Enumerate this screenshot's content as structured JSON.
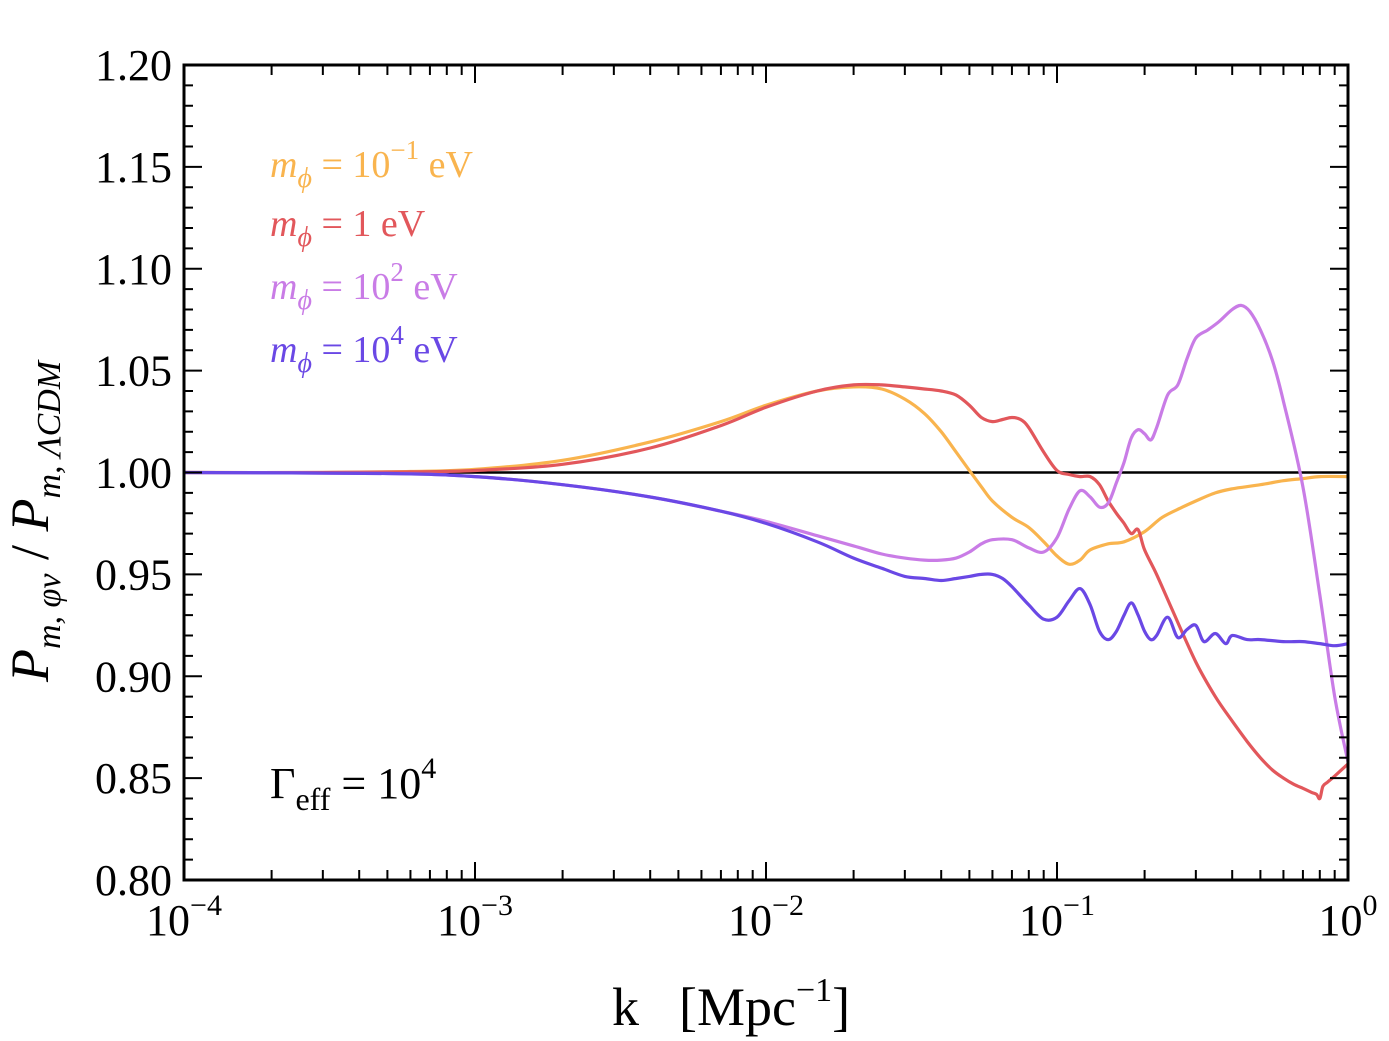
{
  "chart_data": {
    "type": "line",
    "title": "",
    "xscale": "log",
    "xlim": [
      0.0001,
      1
    ],
    "ylim": [
      0.8,
      1.2
    ],
    "xlabel": {
      "main": "k",
      "unit_open": "[Mpc",
      "unit_exp": "−1",
      "unit_close": "]"
    },
    "ylabel": {
      "p1": "P",
      "s1": "m, φν",
      "sep": " / ",
      "p2": "P",
      "s2": "m, ΛCDM"
    },
    "x_ticks": [
      {
        "value": 0.0001,
        "base": "10",
        "exp": "−4"
      },
      {
        "value": 0.001,
        "base": "10",
        "exp": "−3"
      },
      {
        "value": 0.01,
        "base": "10",
        "exp": "−2"
      },
      {
        "value": 0.1,
        "base": "10",
        "exp": "−1"
      },
      {
        "value": 1,
        "base": "10",
        "exp": "0"
      }
    ],
    "y_ticks": [
      {
        "value": 0.8,
        "label": "0.80"
      },
      {
        "value": 0.85,
        "label": "0.85"
      },
      {
        "value": 0.9,
        "label": "0.90"
      },
      {
        "value": 0.95,
        "label": "0.95"
      },
      {
        "value": 1.0,
        "label": "1.00"
      },
      {
        "value": 1.05,
        "label": "1.05"
      },
      {
        "value": 1.1,
        "label": "1.10"
      },
      {
        "value": 1.15,
        "label": "1.15"
      },
      {
        "value": 1.2,
        "label": "1.20"
      }
    ],
    "reference_line": {
      "y": 1.0,
      "color": "#000000"
    },
    "annotation": {
      "sym": "Γ",
      "sub": "eff",
      "eq": " = 10",
      "exp": "4"
    },
    "legend_position": "top-left",
    "series": [
      {
        "name": "m_phi = 10^-1 eV",
        "legend": {
          "sym": "m",
          "sub": "ϕ",
          "eq": " = 10",
          "exp": "−1",
          "unit": " eV"
        },
        "color": "#F9B44E",
        "x": [
          0.0001,
          0.0003,
          0.0006,
          0.001,
          0.002,
          0.004,
          0.007,
          0.01,
          0.015,
          0.02,
          0.025,
          0.03,
          0.035,
          0.04,
          0.045,
          0.05,
          0.055,
          0.06,
          0.07,
          0.08,
          0.09,
          0.1,
          0.11,
          0.12,
          0.13,
          0.15,
          0.17,
          0.2,
          0.23,
          0.27,
          0.3,
          0.35,
          0.4,
          0.5,
          0.6,
          0.7,
          0.8,
          1.0
        ],
        "y": [
          1.0,
          1.0,
          1.0005,
          1.0015,
          1.006,
          1.015,
          1.025,
          1.033,
          1.04,
          1.042,
          1.041,
          1.036,
          1.029,
          1.02,
          1.01,
          1.001,
          0.993,
          0.986,
          0.978,
          0.973,
          0.966,
          0.959,
          0.955,
          0.957,
          0.962,
          0.965,
          0.966,
          0.971,
          0.978,
          0.983,
          0.986,
          0.99,
          0.992,
          0.994,
          0.996,
          0.997,
          0.998,
          0.998
        ]
      },
      {
        "name": "m_phi = 1 eV",
        "legend": {
          "sym": "m",
          "sub": "ϕ",
          "eq": " = 1",
          "exp": "",
          "unit": " eV"
        },
        "color": "#E2575B",
        "x": [
          0.0001,
          0.0003,
          0.0006,
          0.001,
          0.002,
          0.004,
          0.007,
          0.01,
          0.015,
          0.02,
          0.025,
          0.03,
          0.035,
          0.04,
          0.045,
          0.05,
          0.055,
          0.06,
          0.065,
          0.07,
          0.075,
          0.08,
          0.09,
          0.1,
          0.11,
          0.12,
          0.13,
          0.14,
          0.15,
          0.16,
          0.17,
          0.18,
          0.19,
          0.2,
          0.22,
          0.25,
          0.3,
          0.35,
          0.4,
          0.45,
          0.5,
          0.55,
          0.6,
          0.65,
          0.7,
          0.75,
          0.78,
          0.8,
          0.82,
          0.85,
          0.9,
          1.0
        ],
        "y": [
          1.0,
          1.0,
          1.0003,
          1.001,
          1.004,
          1.012,
          1.023,
          1.032,
          1.04,
          1.043,
          1.043,
          1.042,
          1.041,
          1.04,
          1.038,
          1.033,
          1.027,
          1.025,
          1.026,
          1.027,
          1.026,
          1.022,
          1.01,
          1.001,
          0.999,
          0.998,
          0.998,
          0.994,
          0.986,
          0.98,
          0.975,
          0.97,
          0.972,
          0.962,
          0.95,
          0.932,
          0.907,
          0.89,
          0.878,
          0.868,
          0.86,
          0.854,
          0.85,
          0.847,
          0.845,
          0.843,
          0.842,
          0.84,
          0.846,
          0.848,
          0.851,
          0.857
        ]
      },
      {
        "name": "m_phi = 10^2 eV",
        "legend": {
          "sym": "m",
          "sub": "ϕ",
          "eq": " = 10",
          "exp": "2",
          "unit": " eV"
        },
        "color": "#C97CE6",
        "x": [
          0.0001,
          0.0005,
          0.001,
          0.002,
          0.004,
          0.007,
          0.01,
          0.015,
          0.02,
          0.025,
          0.03,
          0.035,
          0.04,
          0.045,
          0.05,
          0.055,
          0.06,
          0.07,
          0.08,
          0.09,
          0.1,
          0.11,
          0.12,
          0.13,
          0.14,
          0.15,
          0.16,
          0.17,
          0.18,
          0.19,
          0.2,
          0.21,
          0.22,
          0.24,
          0.26,
          0.28,
          0.3,
          0.33,
          0.36,
          0.4,
          0.43,
          0.46,
          0.5,
          0.55,
          0.6,
          0.7,
          0.8,
          0.9,
          1.0
        ],
        "y": [
          1.0,
          0.9995,
          0.998,
          0.994,
          0.988,
          0.981,
          0.976,
          0.969,
          0.964,
          0.96,
          0.958,
          0.957,
          0.957,
          0.958,
          0.961,
          0.965,
          0.967,
          0.967,
          0.963,
          0.961,
          0.968,
          0.982,
          0.991,
          0.988,
          0.983,
          0.985,
          0.995,
          1.005,
          1.017,
          1.021,
          1.019,
          1.016,
          1.022,
          1.038,
          1.043,
          1.056,
          1.066,
          1.07,
          1.074,
          1.08,
          1.082,
          1.079,
          1.07,
          1.055,
          1.035,
          0.993,
          0.94,
          0.89,
          0.858
        ]
      },
      {
        "name": "m_phi = 10^4 eV",
        "legend": {
          "sym": "m",
          "sub": "ϕ",
          "eq": " = 10",
          "exp": "4",
          "unit": " eV"
        },
        "color": "#6A48E5",
        "x": [
          0.0001,
          0.0005,
          0.001,
          0.002,
          0.004,
          0.007,
          0.01,
          0.015,
          0.02,
          0.025,
          0.03,
          0.035,
          0.04,
          0.045,
          0.05,
          0.055,
          0.06,
          0.065,
          0.07,
          0.08,
          0.09,
          0.1,
          0.11,
          0.12,
          0.13,
          0.14,
          0.15,
          0.16,
          0.17,
          0.18,
          0.19,
          0.2,
          0.21,
          0.22,
          0.24,
          0.26,
          0.28,
          0.3,
          0.32,
          0.35,
          0.38,
          0.4,
          0.45,
          0.5,
          0.6,
          0.7,
          0.8,
          0.9,
          1.0
        ],
        "y": [
          1.0,
          0.9995,
          0.998,
          0.994,
          0.988,
          0.981,
          0.975,
          0.966,
          0.958,
          0.953,
          0.949,
          0.948,
          0.947,
          0.948,
          0.949,
          0.95,
          0.95,
          0.948,
          0.944,
          0.935,
          0.928,
          0.929,
          0.937,
          0.943,
          0.935,
          0.922,
          0.918,
          0.922,
          0.93,
          0.936,
          0.93,
          0.922,
          0.918,
          0.92,
          0.929,
          0.919,
          0.923,
          0.925,
          0.917,
          0.921,
          0.916,
          0.92,
          0.918,
          0.918,
          0.917,
          0.917,
          0.916,
          0.915,
          0.916
        ]
      }
    ]
  }
}
